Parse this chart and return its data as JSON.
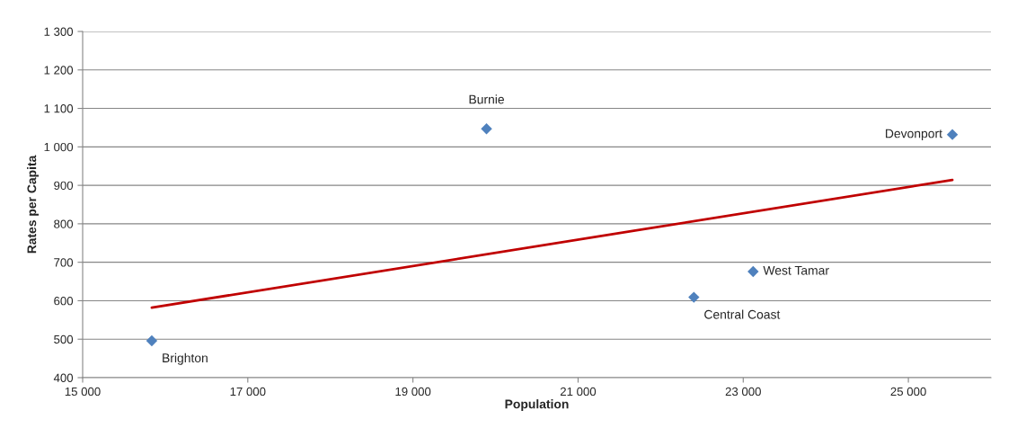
{
  "chart_data": {
    "type": "scatter",
    "xlabel": "Population",
    "ylabel": "Rates per Capita",
    "series": [
      {
        "type": "scatter",
        "color": "#4f81bd",
        "marker": "diamond",
        "x": [
          15837,
          19891,
          25533,
          23120,
          22402
        ],
        "values": [
          496,
          1047,
          1032,
          676,
          609
        ],
        "value_labels": [
          "Brighton",
          "Burnie",
          "Devonport",
          "West Tamar",
          "Central Coast"
        ]
      },
      {
        "type": "line",
        "color": "#c00000",
        "marker": "none",
        "line_style": "solid",
        "x": [
          15837,
          25533
        ],
        "values": [
          582,
          914
        ]
      }
    ],
    "xlim": [
      15000,
      26000
    ],
    "xticks": [
      {
        "value": 15000,
        "label": "15 000"
      },
      {
        "value": 17000,
        "label": "17 000"
      },
      {
        "value": 19000,
        "label": "19 000"
      },
      {
        "value": 21000,
        "label": "21 000"
      },
      {
        "value": 23000,
        "label": "23 000"
      },
      {
        "value": 25000,
        "label": "25 000"
      }
    ],
    "ylim": [
      400,
      1300
    ],
    "yticks": [
      400,
      500,
      600,
      700,
      800,
      900,
      {
        "value": 1000,
        "label": "1 000"
      },
      {
        "value": 1100,
        "label": "1 100"
      },
      {
        "value": 1200,
        "label": "1 200"
      },
      {
        "value": 1300,
        "label": "1 300"
      }
    ],
    "grid": "y",
    "legend": false
  }
}
